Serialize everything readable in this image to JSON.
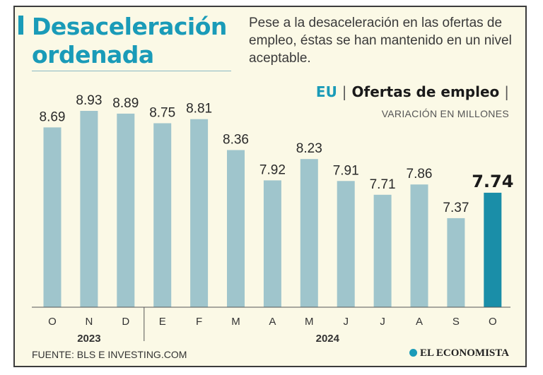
{
  "header": {
    "title_line1": "Desaceleración",
    "title_line2": "ordenada",
    "subtitle": "Pese a la desaceleración en las ofertas de empleo, éstas se han mantenido en un nivel aceptable."
  },
  "chart_head": {
    "country": "EU",
    "separator": "|",
    "title": "Ofertas de empleo",
    "trailing_separator": "|",
    "unit_label": "VARIACIÓN EN MILLONES"
  },
  "footer": {
    "source": "FUENTE: BLS E INVESTING.COM",
    "brand": "EL ECONOMISTA"
  },
  "colors": {
    "accent": "#1a9bb8",
    "bar": "#9fc5cc",
    "bar_highlight": "#1a8ea8",
    "background": "#fbf9e6"
  },
  "chart_data": {
    "type": "bar",
    "title": "Ofertas de empleo",
    "ylabel": "VARIACIÓN EN MILLONES",
    "xlabel": "",
    "categories": [
      "O",
      "N",
      "D",
      "E",
      "F",
      "M",
      "A",
      "M",
      "J",
      "J",
      "A",
      "S",
      "O"
    ],
    "values": [
      8.69,
      8.93,
      8.89,
      8.75,
      8.81,
      8.36,
      7.92,
      8.23,
      7.91,
      7.71,
      7.86,
      7.37,
      7.74
    ],
    "value_labels": [
      "8.69",
      "8.93",
      "8.89",
      "8.75",
      "8.81",
      "8.36",
      "7.92",
      "8.23",
      "7.91",
      "7.71",
      "7.86",
      "7.37",
      "7.74"
    ],
    "highlight_index": 12,
    "year_groups": [
      {
        "label": "2023",
        "start": 0,
        "end": 2
      },
      {
        "label": "2024",
        "start": 3,
        "end": 12
      }
    ],
    "ylim": [
      0,
      9.5
    ],
    "grid": false,
    "legend": "none"
  }
}
